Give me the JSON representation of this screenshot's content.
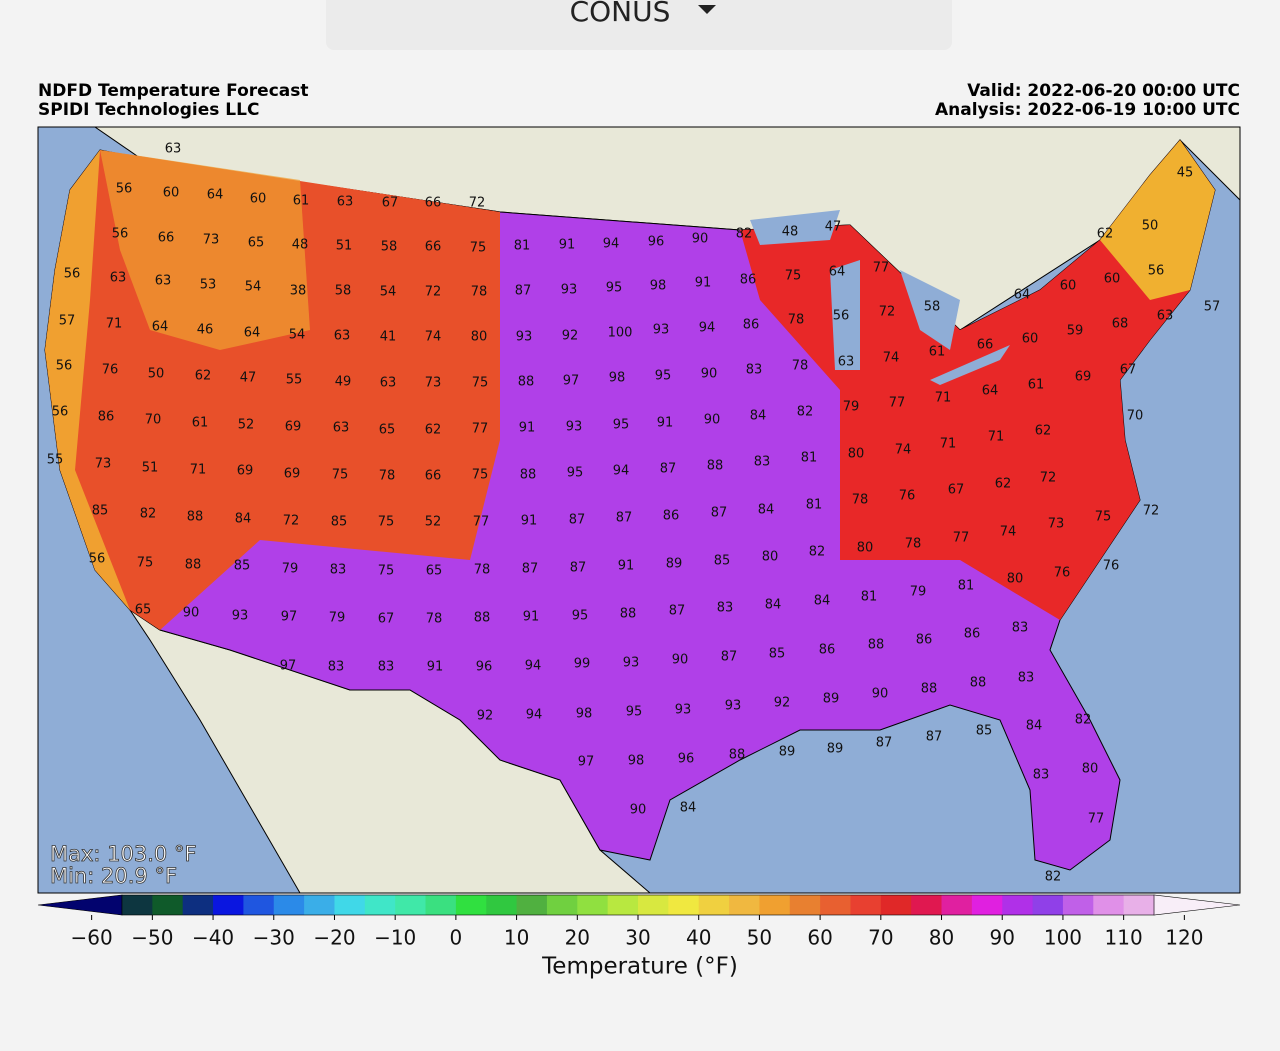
{
  "header": {
    "dropdown": "CONUS"
  },
  "map": {
    "title": "NDFD Temperature Forecast",
    "source": "SPIDI Technologies LLC",
    "valid": "Valid: 2022-06-20 00:00 UTC",
    "analysis": "Analysis: 2022-06-19 10:00 UTC",
    "max": "Max: 103.0 °F",
    "min": "Min: 20.9 °F",
    "station_values": [
      63,
      56,
      60,
      64,
      60,
      61,
      63,
      67,
      66,
      72,
      56,
      66,
      73,
      65,
      48,
      51,
      58,
      66,
      75,
      81,
      91,
      94,
      96,
      90,
      82,
      48,
      47,
      45,
      50,
      62,
      56,
      63,
      63,
      53,
      54,
      38,
      58,
      54,
      72,
      78,
      87,
      93,
      95,
      98,
      91,
      86,
      75,
      64,
      77,
      56,
      60,
      60,
      64,
      57,
      71,
      64,
      46,
      64,
      54,
      63,
      41,
      74,
      80,
      93,
      92,
      100,
      93,
      94,
      86,
      78,
      56,
      72,
      58,
      57,
      63,
      59,
      60,
      66,
      61,
      68,
      56,
      76,
      50,
      62,
      47,
      55,
      49,
      63,
      73,
      75,
      88,
      97,
      98,
      95,
      90,
      83,
      78,
      63,
      74,
      69,
      61,
      64,
      67,
      56,
      86,
      70,
      61,
      52,
      69,
      63,
      65,
      62,
      77,
      91,
      93,
      95,
      91,
      90,
      84,
      82,
      79,
      77,
      71,
      70,
      62,
      71,
      71,
      55,
      73,
      51,
      71,
      69,
      69,
      75,
      78,
      66,
      75,
      88,
      95,
      94,
      87,
      88,
      83,
      81,
      80,
      74,
      72,
      62,
      67,
      76,
      85,
      82,
      88,
      84,
      72,
      85,
      75,
      52,
      77,
      91,
      87,
      87,
      86,
      87,
      84,
      81,
      78,
      72,
      75,
      73,
      74,
      77,
      56,
      75,
      88,
      85,
      79,
      83,
      75,
      65,
      78,
      87,
      87,
      91,
      89,
      85,
      80,
      82,
      80,
      78,
      76,
      76,
      80,
      81,
      79,
      81,
      84,
      65,
      90,
      93,
      97,
      79,
      67,
      78,
      88,
      91,
      95,
      88,
      87,
      83,
      84,
      83,
      86,
      86,
      88,
      86,
      97,
      83,
      83,
      91,
      96,
      94,
      99,
      93,
      90,
      87,
      85,
      83,
      88,
      88,
      90,
      89,
      92,
      93,
      92,
      94,
      98,
      95,
      93,
      82,
      84,
      85,
      87,
      87,
      89,
      89,
      88,
      97,
      98,
      96,
      80,
      83,
      77,
      90,
      84,
      82
    ]
  },
  "colorbar": {
    "label": "Temperature (°F)",
    "ticks": [
      {
        "value": -60,
        "label": "−60"
      },
      {
        "value": -50,
        "label": "−50"
      },
      {
        "value": -40,
        "label": "−40"
      },
      {
        "value": -30,
        "label": "−30"
      },
      {
        "value": -20,
        "label": "−20"
      },
      {
        "value": -10,
        "label": "−10"
      },
      0,
      10,
      20,
      30,
      40,
      50,
      60,
      70,
      80,
      90,
      100,
      110,
      120
    ],
    "clim": [
      -55,
      115
    ],
    "colors": [
      "#0d3640",
      "#0f5a2a",
      "#0d2f80",
      "#0a16e0",
      "#1f56e0",
      "#2b8ae8",
      "#3aaee8",
      "#40d8e8",
      "#40e6c8",
      "#40e8a8",
      "#3ae080",
      "#30e040",
      "#30c840",
      "#50b040",
      "#70d040",
      "#90e040",
      "#b8e840",
      "#d8e840",
      "#f0e840",
      "#f0d040",
      "#f0b840",
      "#f0a030",
      "#e88030",
      "#e86030",
      "#e84030",
      "#e02828",
      "#e01850",
      "#e020a0",
      "#e020e0",
      "#b030e8",
      "#9040e8",
      "#c060e8",
      "#e090e8",
      "#e8b0e8"
    ],
    "extend_colors": [
      "#02036e",
      "#f8eef8"
    ]
  }
}
